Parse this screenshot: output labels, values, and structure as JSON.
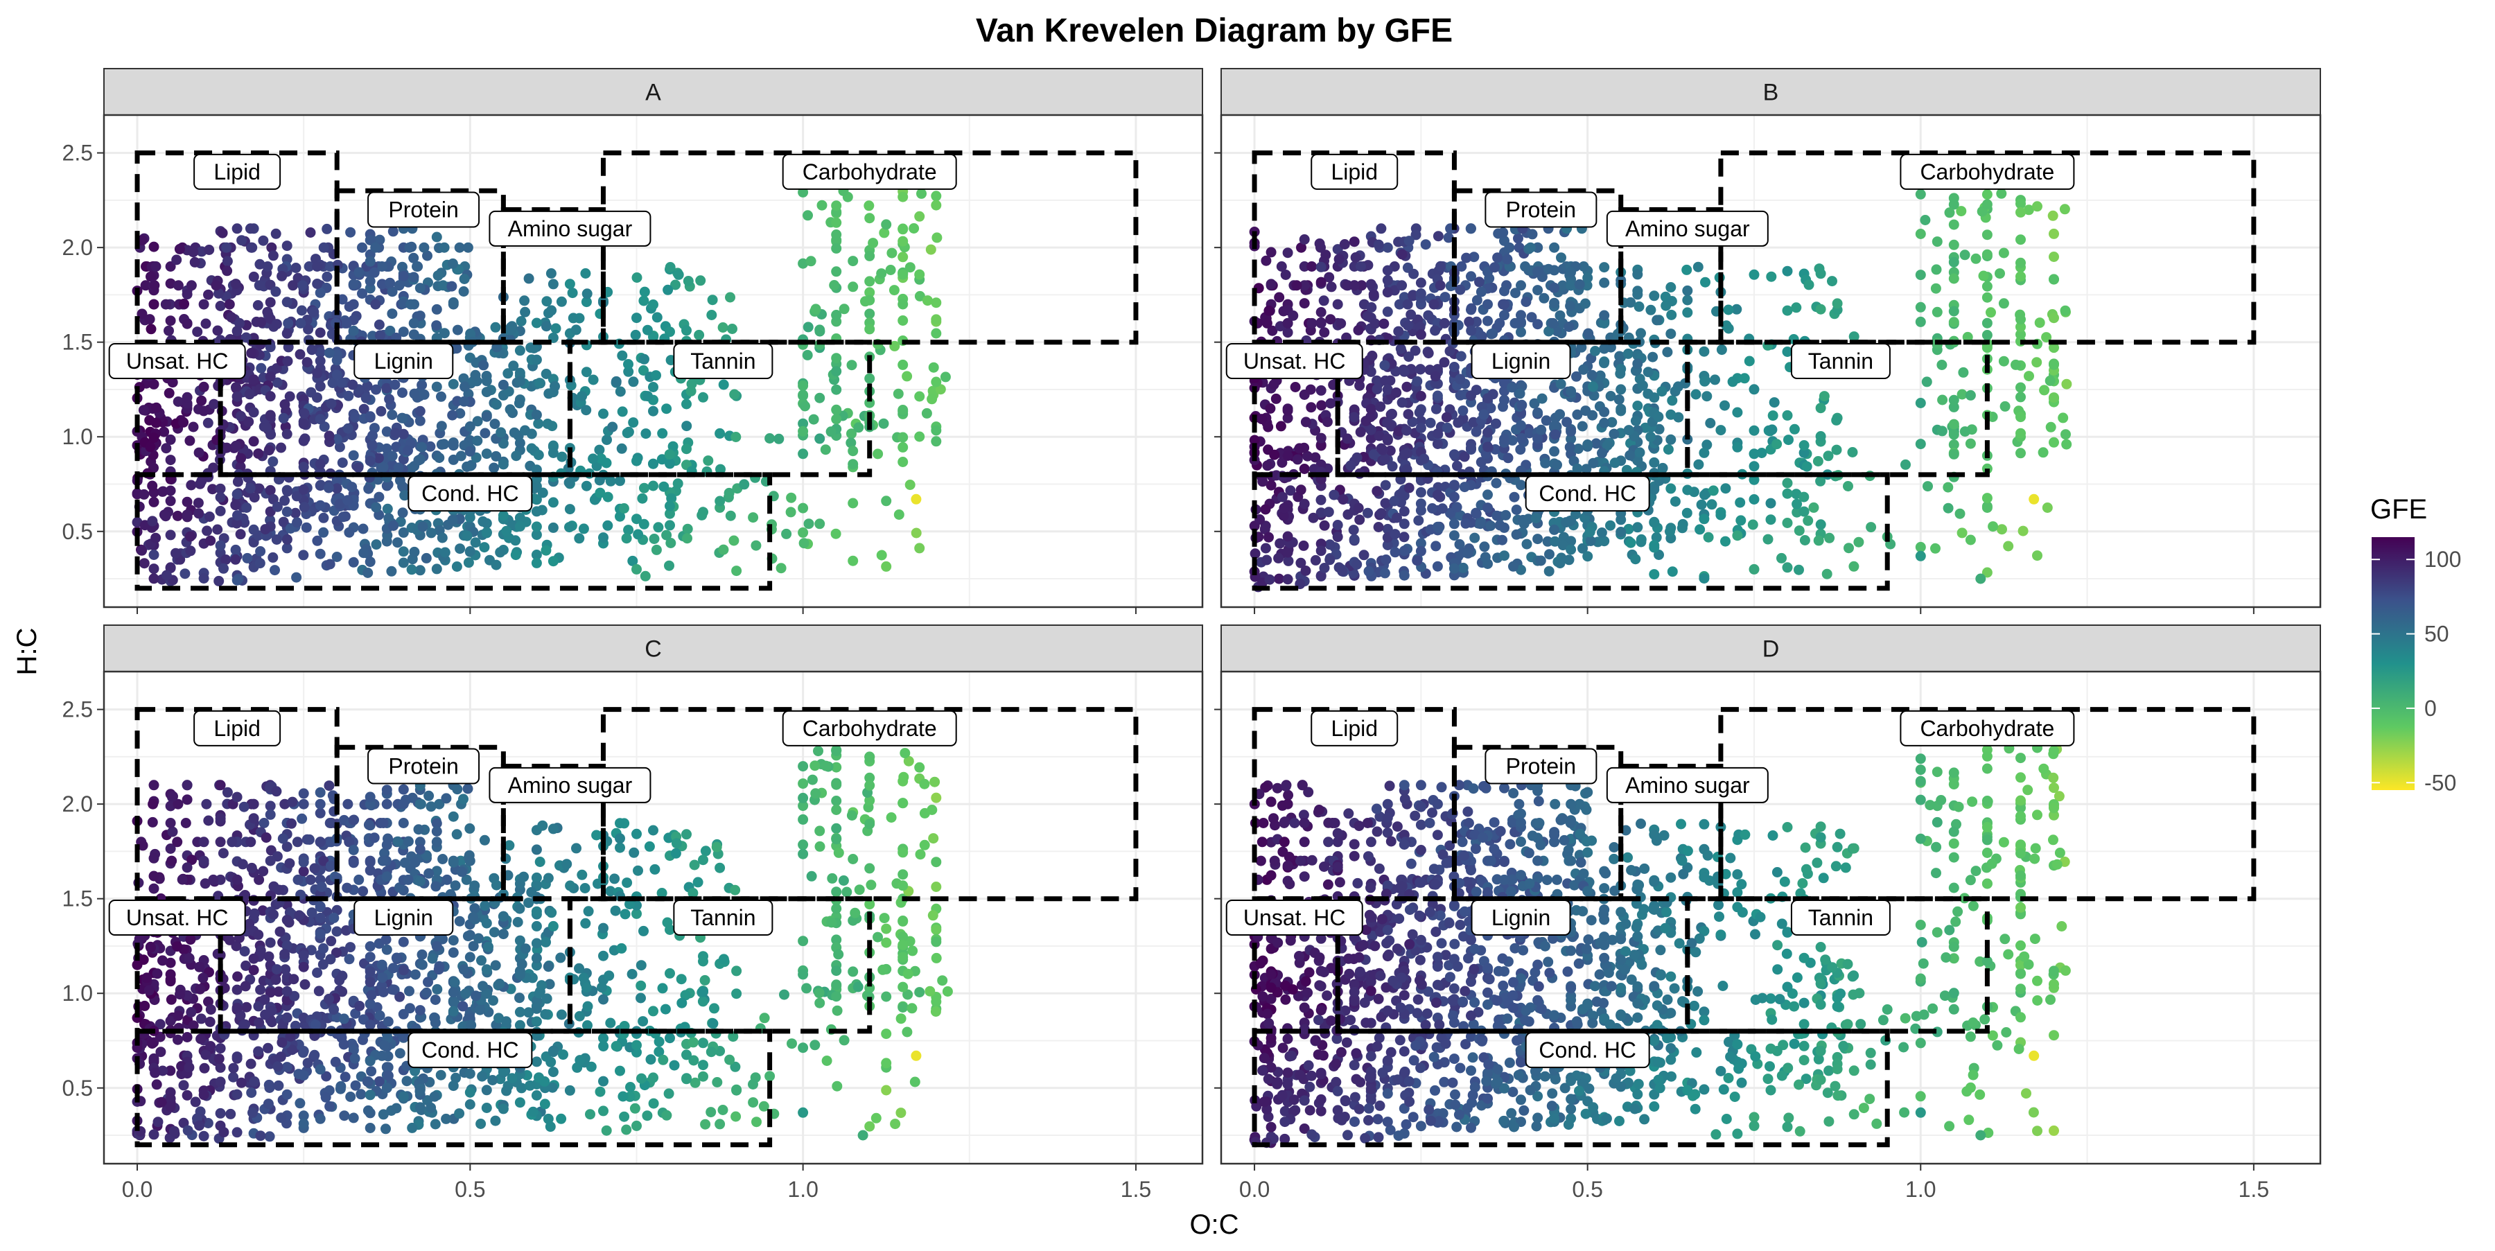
{
  "chart_data": {
    "type": "scatter",
    "title": "Van Krevelen Diagram by GFE",
    "xlabel": "O:C",
    "ylabel": "H:C",
    "xlim": [
      -0.05,
      1.6
    ],
    "ylim": [
      0.1,
      2.7
    ],
    "x_ticks": [
      0.0,
      0.5,
      1.0,
      1.5
    ],
    "x_tick_labels": [
      "0.0",
      "0.5",
      "1.0",
      "1.5"
    ],
    "y_ticks": [
      0.5,
      1.0,
      1.5,
      2.0,
      2.5
    ],
    "y_tick_labels": [
      "0.5",
      "1.0",
      "1.5",
      "2.0",
      "2.5"
    ],
    "grid": true,
    "facets": [
      "A",
      "B",
      "C",
      "D"
    ],
    "legend": {
      "title": "GFE",
      "position": "right",
      "min": -55,
      "max": 115,
      "ticks": [
        100,
        50,
        0,
        -50
      ],
      "tick_labels": [
        "100",
        "50",
        "0",
        "-50"
      ],
      "colors": [
        "#fde725",
        "#5ec962",
        "#21918c",
        "#3b528b",
        "#440154"
      ]
    },
    "regions": [
      {
        "name": "Lipid",
        "oc": [
          0.0,
          0.3
        ],
        "hc": [
          1.5,
          2.5
        ],
        "label_at": [
          0.15,
          2.4
        ]
      },
      {
        "name": "Protein",
        "oc": [
          0.3,
          0.55
        ],
        "hc": [
          1.5,
          2.3
        ],
        "label_at": [
          0.43,
          2.2
        ]
      },
      {
        "name": "Amino sugar",
        "oc": [
          0.55,
          0.7
        ],
        "hc": [
          1.5,
          2.2
        ],
        "label_at": [
          0.65,
          2.1
        ]
      },
      {
        "name": "Carbohydrate",
        "oc": [
          0.7,
          1.5
        ],
        "hc": [
          1.5,
          2.5
        ],
        "label_at": [
          1.1,
          2.4
        ]
      },
      {
        "name": "Unsat. HC",
        "oc": [
          0.0,
          0.125
        ],
        "hc": [
          0.8,
          1.5
        ],
        "label_at": [
          0.06,
          1.4
        ]
      },
      {
        "name": "Lignin",
        "oc": [
          0.125,
          0.65
        ],
        "hc": [
          0.8,
          1.5
        ],
        "label_at": [
          0.4,
          1.4
        ]
      },
      {
        "name": "Tannin",
        "oc": [
          0.65,
          1.1
        ],
        "hc": [
          0.8,
          1.5
        ],
        "label_at": [
          0.88,
          1.4
        ]
      },
      {
        "name": "Cond. HC",
        "oc": [
          0.0,
          0.95
        ],
        "hc": [
          0.2,
          0.8
        ],
        "label_at": [
          0.5,
          0.7
        ]
      }
    ]
  }
}
